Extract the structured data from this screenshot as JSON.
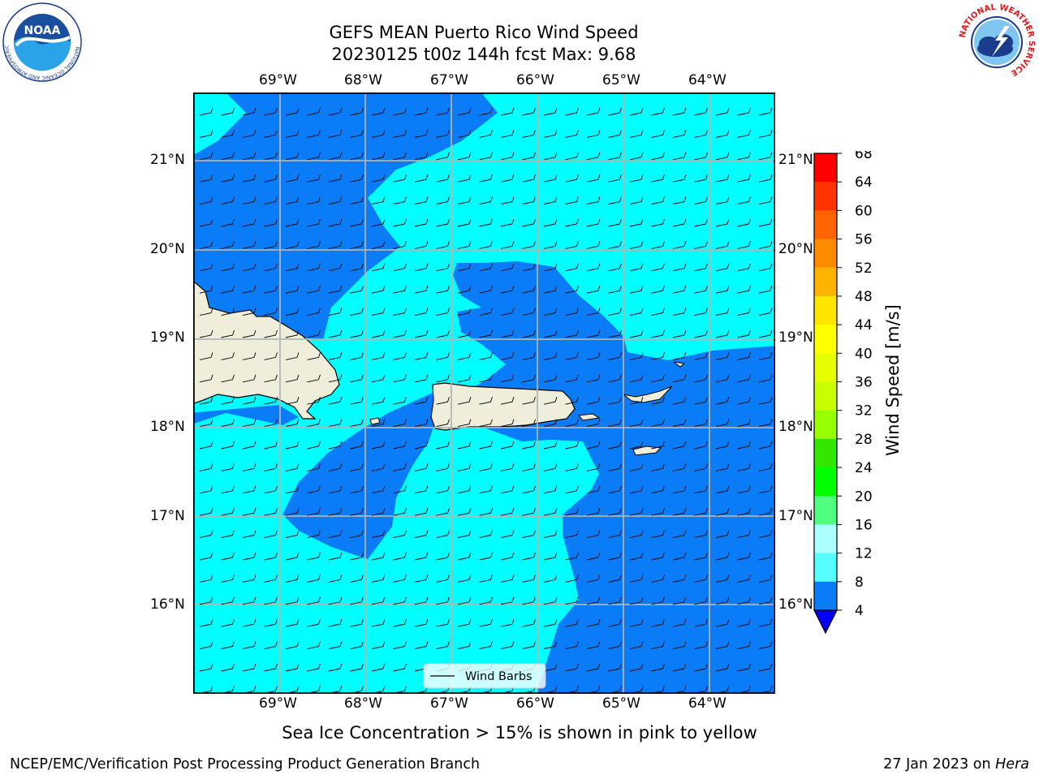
{
  "title": {
    "line1": "GEFS MEAN Puerto Rico Wind Speed",
    "line2": "20230125 t00z 144h fcst   Max: 9.68"
  },
  "map": {
    "lon_ticks": [
      "69°W",
      "68°W",
      "67°W",
      "66°W",
      "65°W",
      "64°W"
    ],
    "lat_ticks": [
      "21°N",
      "20°N",
      "19°N",
      "18°N",
      "17°N",
      "16°N"
    ],
    "legend_label": "Wind Barbs",
    "colors": {
      "fill_4_8": "#0a7cf8",
      "fill_8_12": "#00ffff",
      "land": "#efeedb",
      "grid": "#b4b4b4"
    }
  },
  "colorbar": {
    "label": "Wind Speed [m/s]",
    "ticks": [
      "68",
      "64",
      "60",
      "56",
      "52",
      "48",
      "44",
      "40",
      "36",
      "32",
      "28",
      "24",
      "20",
      "16",
      "12",
      "8",
      "4"
    ],
    "bands": [
      "#ff0000",
      "#ff3200",
      "#ff6400",
      "#ff8c00",
      "#ffb400",
      "#ffe600",
      "#ffff00",
      "#e6ff00",
      "#c8ff00",
      "#96ff00",
      "#32e600",
      "#00ff00",
      "#50ff80",
      "#aaffff",
      "#55ffff",
      "#00ffff",
      "#0a7cf8"
    ],
    "under_color": "#0000ff"
  },
  "caption": "Sea Ice Concentration > 15% is shown in pink to yellow",
  "footer": {
    "left": "NCEP/EMC/Verification Post Processing Product Generation Branch",
    "right_prefix": "27 Jan 2023 on ",
    "right_host": "Hera"
  },
  "logos": {
    "noaa_text": "NOAA",
    "noaa_ring_text": "NATIONAL OCEANIC AND ATMOSPHERIC ADMINISTRATION",
    "noaa_ring_bottom": "U.S. DEPARTMENT OF COMMERCE",
    "nws_ring_text": "NATIONAL WEATHER SERVICE"
  }
}
